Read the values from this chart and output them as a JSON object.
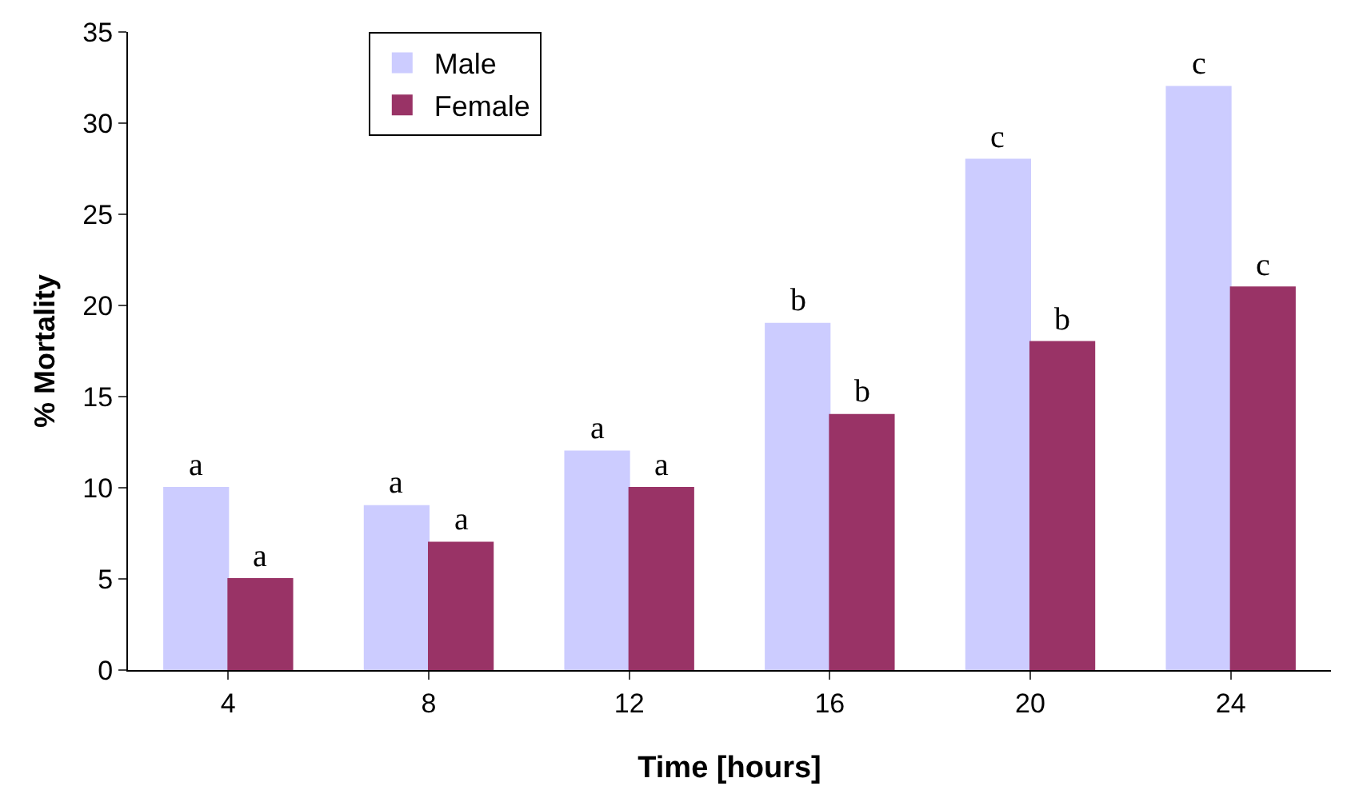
{
  "chart_data": {
    "type": "bar",
    "xlabel": "Time [hours]",
    "ylabel": "% Mortality",
    "categories": [
      "4",
      "8",
      "12",
      "16",
      "20",
      "24"
    ],
    "series": [
      {
        "name": "Male",
        "color": "#ccccff",
        "values": [
          10,
          9,
          12,
          19,
          28,
          32
        ]
      },
      {
        "name": "Female",
        "color": "#993366",
        "values": [
          5,
          7,
          10,
          14,
          18,
          21
        ]
      }
    ],
    "ylim": [
      0,
      35
    ],
    "yticks": [
      0,
      5,
      10,
      15,
      20,
      25,
      30,
      35
    ],
    "grid": false,
    "legend": "top left",
    "annotations": [
      {
        "text": "a",
        "x": "4",
        "y": 10
      },
      {
        "text": "a",
        "x": "4",
        "y": 5
      },
      {
        "text": "a",
        "x": "8",
        "y": 9
      },
      {
        "text": "a",
        "x": "8",
        "y": 7
      },
      {
        "text": "a",
        "x": "12",
        "y": 12
      },
      {
        "text": "a",
        "x": "12",
        "y": 10
      },
      {
        "text": "b",
        "x": "16",
        "y": 19
      },
      {
        "text": "b",
        "x": "16",
        "y": 14
      },
      {
        "text": "c",
        "x": "20",
        "y": 28
      },
      {
        "text": "b",
        "x": "20",
        "y": 18
      },
      {
        "text": "c",
        "x": "24",
        "y": 32
      },
      {
        "text": "c",
        "x": "24",
        "y": 21
      }
    ]
  }
}
